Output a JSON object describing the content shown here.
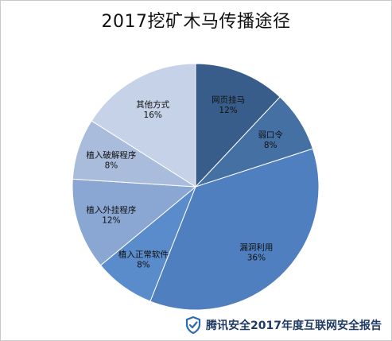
{
  "chart_data": {
    "type": "pie",
    "title": "2017挖矿木马传播途径",
    "start_angle_deg": 0,
    "direction": "clockwise",
    "slices": [
      {
        "label": "网页挂马",
        "percent_label": "12%",
        "value": 12,
        "color": "#385d8a"
      },
      {
        "label": "弱口令",
        "percent_label": "8%",
        "value": 8,
        "color": "#4470a3"
      },
      {
        "label": "漏洞利用",
        "percent_label": "36%",
        "value": 36,
        "color": "#4f7fbf"
      },
      {
        "label": "植入正常软件",
        "percent_label": "8%",
        "value": 8,
        "color": "#5a8ccb"
      },
      {
        "label": "植入外挂程序",
        "percent_label": "12%",
        "value": 12,
        "color": "#8aa6d2"
      },
      {
        "label": "植入破解程序",
        "percent_label": "8%",
        "value": 8,
        "color": "#a9bcdc"
      },
      {
        "label": "其他方式",
        "percent_label": "16%",
        "value": 16,
        "color": "#c5d2e8"
      }
    ]
  },
  "footer": {
    "text": "腾讯安全2017年度互联网安全报告",
    "logo_icon": "shield-check-icon",
    "logo_color": "#2d6bb3"
  }
}
